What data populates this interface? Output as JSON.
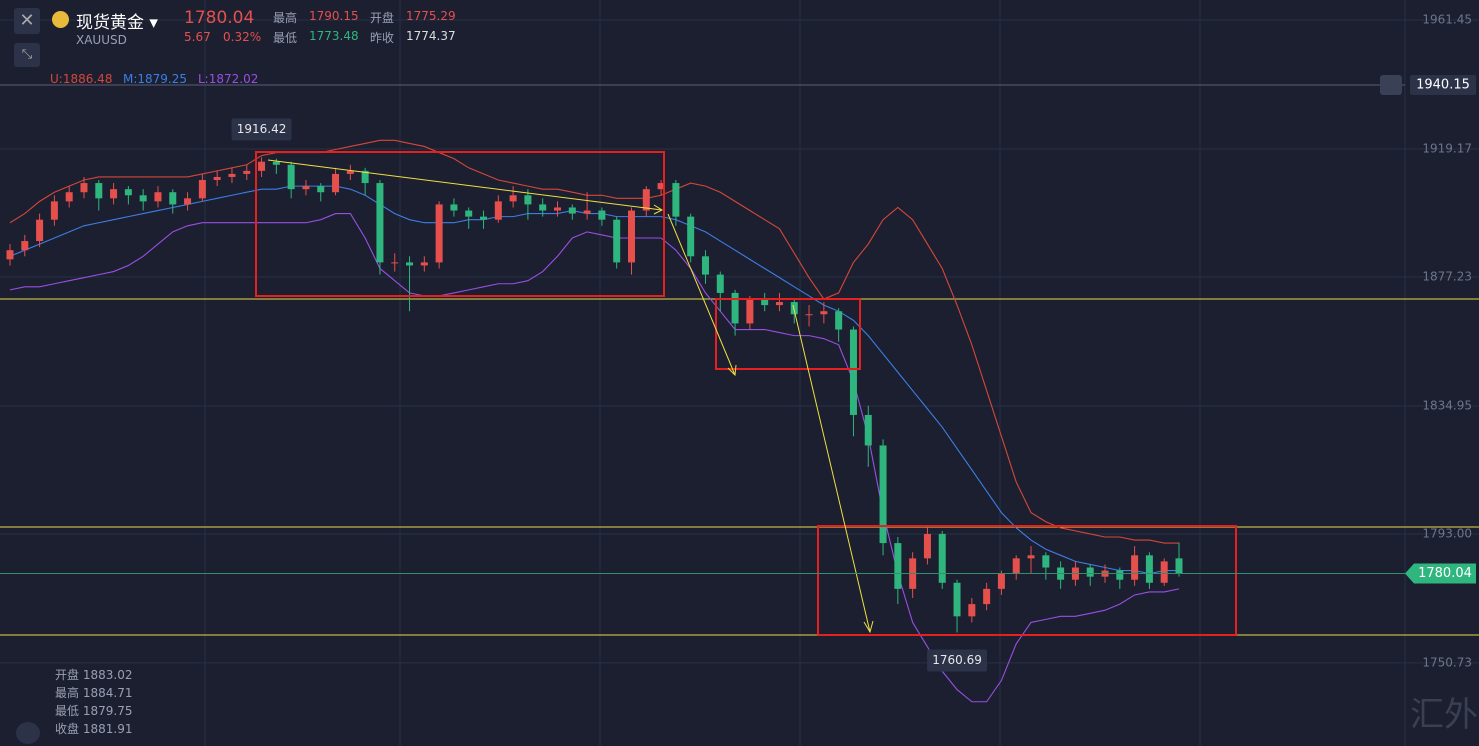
{
  "header": {
    "name": "现货黄金",
    "symbol": "XAUUSD",
    "price": "1780.04",
    "change": "5.67",
    "change_pct": "0.32%",
    "stats": [
      {
        "label": "最高",
        "value": "1790.15"
      },
      {
        "label": "开盘",
        "value": "1775.29"
      },
      {
        "label": "最低",
        "value": "1773.48"
      },
      {
        "label": "昨收",
        "value": "1774.37"
      }
    ]
  },
  "legend": {
    "upper": "U:1886.48",
    "middle": "M:1879.25",
    "lower": "L:1872.02"
  },
  "info": [
    {
      "label": "开盘",
      "value": "1883.02"
    },
    {
      "label": "最高",
      "value": "1884.71"
    },
    {
      "label": "最低",
      "value": "1879.75"
    },
    {
      "label": "收盘",
      "value": "1881.91"
    }
  ],
  "watermark": "汇外网",
  "chart_data": {
    "type": "candlestick",
    "up_color": "#e5504d",
    "down_color": "#2fb67e",
    "ylim": [
      1723.5,
      1968.0
    ],
    "yticks": [
      1961.45,
      1919.17,
      1877.23,
      1834.95,
      {
        "value": 1793,
        "label": "1793.00"
      },
      1750.73
    ],
    "grid": true,
    "alert_price": 1940.15,
    "last_price": 1780.04,
    "max_label": "1916.42",
    "min_label": "1760.69",
    "ohlc": [
      [
        1883,
        1888,
        1881,
        1886
      ],
      [
        1886,
        1891,
        1884,
        1889
      ],
      [
        1889,
        1898,
        1887,
        1896
      ],
      [
        1896,
        1904,
        1894,
        1902
      ],
      [
        1902,
        1907,
        1900,
        1905
      ],
      [
        1905,
        1910,
        1903,
        1908
      ],
      [
        1908,
        1909,
        1899,
        1903
      ],
      [
        1903,
        1908,
        1901,
        1906
      ],
      [
        1906,
        1907,
        1901,
        1904
      ],
      [
        1904,
        1906,
        1899,
        1902
      ],
      [
        1902,
        1907,
        1900,
        1905
      ],
      [
        1905,
        1906,
        1898,
        1901
      ],
      [
        1901,
        1905,
        1899,
        1903
      ],
      [
        1903,
        1911,
        1902,
        1909
      ],
      [
        1909,
        1912,
        1907,
        1910
      ],
      [
        1910,
        1913,
        1908,
        1911
      ],
      [
        1911,
        1914,
        1909,
        1912
      ],
      [
        1912,
        1916.42,
        1910,
        1915
      ],
      [
        1915,
        1916,
        1911,
        1914
      ],
      [
        1914,
        1915,
        1903,
        1906
      ],
      [
        1906,
        1909,
        1904,
        1907
      ],
      [
        1907,
        1908,
        1902,
        1905
      ],
      [
        1905,
        1913,
        1904,
        1911
      ],
      [
        1911,
        1914,
        1909,
        1912
      ],
      [
        1912,
        1913,
        1904,
        1908
      ],
      [
        1908,
        1909,
        1878,
        1882
      ],
      [
        1882,
        1885,
        1879,
        1882
      ],
      [
        1882,
        1884,
        1866,
        1881
      ],
      [
        1881,
        1884,
        1879,
        1882
      ],
      [
        1882,
        1902,
        1880,
        1901
      ],
      [
        1901,
        1903,
        1897,
        1899
      ],
      [
        1899,
        1900,
        1893,
        1897
      ],
      [
        1897,
        1899,
        1893,
        1896
      ],
      [
        1896,
        1904,
        1895,
        1902
      ],
      [
        1902,
        1907,
        1900,
        1904
      ],
      [
        1904,
        1906,
        1896,
        1901
      ],
      [
        1901,
        1903,
        1897,
        1899
      ],
      [
        1899,
        1902,
        1897,
        1900
      ],
      [
        1900,
        1901,
        1896,
        1898
      ],
      [
        1898,
        1905,
        1896,
        1899
      ],
      [
        1899,
        1900,
        1894,
        1896
      ],
      [
        1896,
        1897,
        1880,
        1882
      ],
      [
        1882,
        1900,
        1878,
        1899
      ],
      [
        1899,
        1907,
        1897,
        1906
      ],
      [
        1906,
        1909,
        1904,
        1908
      ],
      [
        1908,
        1909,
        1894,
        1897
      ],
      [
        1897,
        1898,
        1882,
        1884
      ],
      [
        1884,
        1886,
        1875,
        1878
      ],
      [
        1878,
        1879,
        1866,
        1872
      ],
      [
        1872,
        1873,
        1858,
        1862
      ],
      [
        1862,
        1871,
        1860,
        1870
      ],
      [
        1870,
        1872,
        1866,
        1868
      ],
      [
        1868,
        1872,
        1866,
        1869
      ],
      [
        1869,
        1870,
        1862,
        1865
      ],
      [
        1865,
        1868,
        1861,
        1865
      ],
      [
        1865,
        1869,
        1862,
        1866
      ],
      [
        1866,
        1867,
        1856,
        1860
      ],
      [
        1860,
        1861,
        1825,
        1832
      ],
      [
        1832,
        1835,
        1815,
        1822
      ],
      [
        1822,
        1824,
        1786,
        1790
      ],
      [
        1790,
        1792,
        1770,
        1775
      ],
      [
        1775,
        1787,
        1772,
        1785
      ],
      [
        1785,
        1795,
        1783,
        1793
      ],
      [
        1793,
        1794,
        1775,
        1777
      ],
      [
        1777,
        1778,
        1760.69,
        1766
      ],
      [
        1766,
        1772,
        1764,
        1770
      ],
      [
        1770,
        1777,
        1768,
        1775
      ],
      [
        1775,
        1781,
        1773,
        1780
      ],
      [
        1780,
        1786,
        1778,
        1785
      ],
      [
        1785,
        1789,
        1780,
        1786
      ],
      [
        1786,
        1787,
        1778,
        1782
      ],
      [
        1782,
        1784,
        1775,
        1778
      ],
      [
        1778,
        1784,
        1776,
        1782
      ],
      [
        1782,
        1783,
        1776,
        1779
      ],
      [
        1779,
        1783,
        1777,
        1781
      ],
      [
        1781,
        1782,
        1775,
        1778
      ],
      [
        1778,
        1789,
        1776,
        1786
      ],
      [
        1786,
        1787,
        1775,
        1777
      ],
      [
        1777,
        1785,
        1776,
        1784
      ],
      [
        1785,
        1790.15,
        1779,
        1780.04
      ]
    ],
    "series": [
      {
        "name": "U",
        "color": "#d5473a",
        "values": [
          1895,
          1898,
          1902,
          1905,
          1907,
          1909,
          1910,
          1910,
          1910,
          1910,
          1910,
          1910,
          1910,
          1911,
          1912,
          1913,
          1914,
          1917,
          1918,
          1918,
          1918,
          1918,
          1919,
          1920,
          1921,
          1922,
          1922,
          1921,
          1920,
          1918,
          1916,
          1913,
          1911,
          1909,
          1908,
          1907,
          1906,
          1906,
          1905,
          1904,
          1904,
          1903,
          1903,
          1903,
          1904,
          1906,
          1908,
          1907,
          1905,
          1902,
          1899,
          1896,
          1893,
          1885,
          1877,
          1870,
          1872,
          1882,
          1888,
          1896,
          1900,
          1896,
          1888,
          1880,
          1868,
          1855,
          1840,
          1825,
          1810,
          1800,
          1797,
          1795,
          1794,
          1793,
          1792,
          1792,
          1791,
          1791,
          1790,
          1790
        ]
      },
      {
        "name": "M",
        "color": "#3c7ee4",
        "values": [
          1884,
          1886,
          1888,
          1890,
          1892,
          1894,
          1895,
          1896,
          1897,
          1898,
          1899,
          1900,
          1901,
          1902,
          1903,
          1904,
          1905,
          1906,
          1906,
          1907,
          1907,
          1907,
          1907,
          1906,
          1904,
          1901,
          1898,
          1896,
          1895,
          1895,
          1895,
          1896,
          1896,
          1897,
          1897,
          1898,
          1898,
          1898,
          1899,
          1898,
          1898,
          1897,
          1897,
          1897,
          1897,
          1896,
          1894,
          1892,
          1889,
          1886,
          1883,
          1880,
          1877,
          1874,
          1871,
          1868,
          1866,
          1863,
          1858,
          1852,
          1846,
          1840,
          1834,
          1828,
          1821,
          1814,
          1807,
          1800,
          1795,
          1791,
          1788,
          1786,
          1784,
          1783,
          1782,
          1781,
          1781,
          1780,
          1781,
          1781
        ]
      },
      {
        "name": "L",
        "color": "#9a4fe2",
        "values": [
          1873,
          1874,
          1874,
          1875,
          1876,
          1877,
          1878,
          1879,
          1881,
          1884,
          1888,
          1892,
          1894,
          1895,
          1895,
          1895,
          1895,
          1895,
          1895,
          1895,
          1895,
          1896,
          1898,
          1898,
          1890,
          1880,
          1876,
          1872,
          1871,
          1871,
          1872,
          1873,
          1874,
          1875,
          1875,
          1876,
          1879,
          1884,
          1890,
          1892,
          1891,
          1890,
          1890,
          1890,
          1890,
          1886,
          1880,
          1872,
          1866,
          1860,
          1860,
          1860,
          1859,
          1858,
          1858,
          1857,
          1855,
          1843,
          1825,
          1800,
          1780,
          1764,
          1756,
          1748,
          1742,
          1738,
          1738,
          1745,
          1757,
          1764,
          1765,
          1766,
          1766,
          1767,
          1768,
          1770,
          1773,
          1774,
          1774,
          1775
        ]
      }
    ]
  }
}
